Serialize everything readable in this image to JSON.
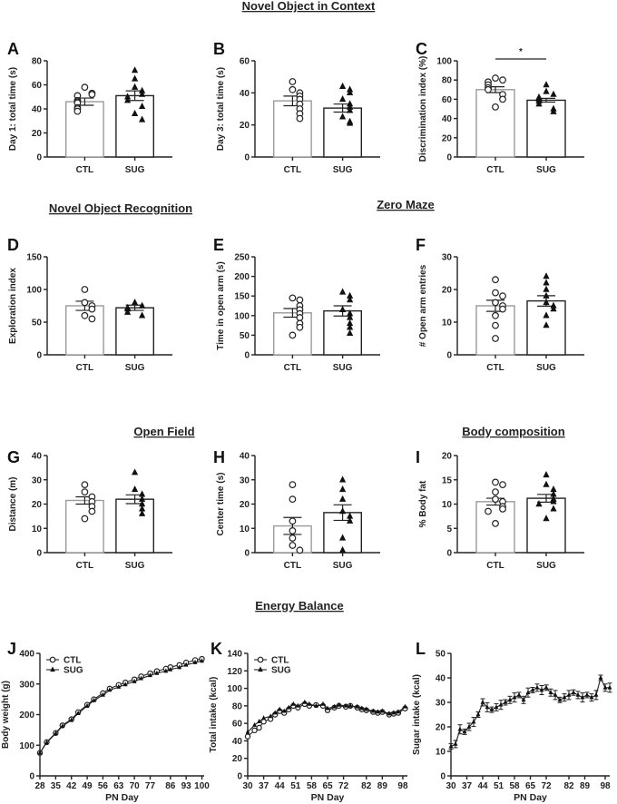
{
  "sections": {
    "noc": "Novel Object in Context",
    "nor": "Novel Object Recognition",
    "zm": "Zero Maze",
    "of": "Open Field",
    "bc": "Body composition",
    "eb": "Energy Balance"
  },
  "chart_data": [
    {
      "id": "A",
      "type": "bar",
      "categories": [
        "CTL",
        "SUG"
      ],
      "ylabel": "Day 1: total time (s)",
      "ylim": [
        0,
        80
      ],
      "yticks": [
        0,
        20,
        40,
        60,
        80
      ],
      "means": [
        46,
        51
      ],
      "sem": [
        3,
        4
      ],
      "points": [
        [
          58,
          53,
          52,
          51,
          47,
          46,
          45,
          41,
          40,
          38
        ],
        [
          72,
          65,
          58,
          55,
          52,
          50,
          47,
          42,
          36,
          31
        ]
      ]
    },
    {
      "id": "B",
      "type": "bar",
      "categories": [
        "CTL",
        "SUG"
      ],
      "ylabel": "Day 3: total time (s)",
      "ylim": [
        0,
        60
      ],
      "yticks": [
        0,
        20,
        40,
        60
      ],
      "means": [
        35,
        30.5
      ],
      "sem": [
        3,
        2.5
      ],
      "points": [
        [
          47,
          42,
          40,
          38,
          36,
          33,
          30,
          27,
          24
        ],
        [
          44,
          42,
          40,
          36,
          33,
          31,
          29,
          25,
          22,
          21
        ]
      ]
    },
    {
      "id": "C",
      "type": "bar",
      "categories": [
        "CTL",
        "SUG"
      ],
      "ylabel": "Discrimination index (%)",
      "ylim": [
        0,
        100
      ],
      "yticks": [
        0,
        20,
        40,
        60,
        80,
        100
      ],
      "means": [
        70,
        59
      ],
      "sem": [
        3,
        2
      ],
      "points": [
        [
          82,
          80,
          78,
          75,
          72,
          70,
          65,
          60,
          52
        ],
        [
          75,
          68,
          65,
          62,
          60,
          58,
          55,
          50,
          47
        ]
      ],
      "significance": "*"
    },
    {
      "id": "D",
      "type": "bar",
      "categories": [
        "CTL",
        "SUG"
      ],
      "ylabel": "Exploration index",
      "ylim": [
        0,
        150
      ],
      "yticks": [
        0,
        50,
        100,
        150
      ],
      "means": [
        75,
        72
      ],
      "sem": [
        7,
        4
      ],
      "points": [
        [
          100,
          80,
          75,
          70,
          60,
          55
        ],
        [
          80,
          75,
          72,
          70,
          65,
          60
        ]
      ]
    },
    {
      "id": "E",
      "type": "bar",
      "categories": [
        "CTL",
        "SUG"
      ],
      "ylabel": "Time in open arm (s)",
      "ylim": [
        0,
        250
      ],
      "yticks": [
        0,
        50,
        100,
        150,
        200,
        250
      ],
      "means": [
        107,
        112
      ],
      "sem": [
        11,
        13
      ],
      "points": [
        [
          145,
          140,
          125,
          115,
          105,
          95,
          80,
          70,
          50
        ],
        [
          160,
          150,
          140,
          115,
          105,
          95,
          80,
          70,
          55
        ]
      ]
    },
    {
      "id": "F",
      "type": "bar",
      "categories": [
        "CTL",
        "SUG"
      ],
      "ylabel": "# Open arm entries",
      "ylim": [
        0,
        30
      ],
      "yticks": [
        0,
        10,
        20,
        30
      ],
      "means": [
        15,
        16.5
      ],
      "sem": [
        1.7,
        1.6
      ],
      "points": [
        [
          23,
          19,
          18,
          16,
          15,
          14,
          12,
          9,
          5
        ],
        [
          24,
          22,
          20,
          18,
          16,
          15,
          14,
          12,
          9
        ]
      ]
    },
    {
      "id": "G",
      "type": "bar",
      "categories": [
        "CTL",
        "SUG"
      ],
      "ylabel": "Distance (m)",
      "ylim": [
        0,
        40
      ],
      "yticks": [
        0,
        10,
        20,
        30,
        40
      ],
      "means": [
        21.5,
        22
      ],
      "sem": [
        1.5,
        1.8
      ],
      "points": [
        [
          28,
          25,
          23,
          21,
          19,
          17,
          14
        ],
        [
          33,
          26,
          24,
          22,
          20,
          18,
          16
        ]
      ]
    },
    {
      "id": "H",
      "type": "bar",
      "categories": [
        "CTL",
        "SUG"
      ],
      "ylabel": "Center time (s)",
      "ylim": [
        0,
        40
      ],
      "yticks": [
        0,
        10,
        20,
        30,
        40
      ],
      "means": [
        11,
        16.5
      ],
      "sem": [
        3.5,
        3.2
      ],
      "points": [
        [
          28,
          22,
          13,
          9,
          6,
          3,
          1
        ],
        [
          30,
          26,
          22,
          17,
          15,
          13,
          6,
          1
        ]
      ]
    },
    {
      "id": "I",
      "type": "bar",
      "categories": [
        "CTL",
        "SUG"
      ],
      "ylabel": "% Body fat",
      "ylim": [
        0,
        20
      ],
      "yticks": [
        0,
        5,
        10,
        15,
        20
      ],
      "means": [
        10.5,
        11.2
      ],
      "sem": [
        0.7,
        0.8
      ],
      "points": [
        [
          14.5,
          14,
          12.5,
          11,
          10.5,
          9.5,
          9,
          8.5,
          6
        ],
        [
          16,
          14,
          13,
          12,
          11,
          10.5,
          10,
          9,
          7
        ]
      ]
    },
    {
      "id": "J",
      "type": "line",
      "ylabel": "Body weight (g)",
      "xlabel": "PN Day",
      "ylim": [
        0,
        400
      ],
      "yticks": [
        0,
        100,
        200,
        300,
        400
      ],
      "xlim": [
        28,
        101
      ],
      "xticks": [
        28,
        35,
        42,
        49,
        56,
        63,
        70,
        77,
        86,
        93,
        100
      ],
      "series": [
        {
          "name": "CTL",
          "marker": "open-circle",
          "x": [
            28,
            31,
            35,
            38,
            42,
            45,
            49,
            52,
            56,
            59,
            63,
            66,
            70,
            73,
            77,
            80,
            84,
            86,
            90,
            93,
            97,
            100
          ],
          "y": [
            75,
            110,
            140,
            165,
            185,
            208,
            232,
            250,
            270,
            285,
            297,
            305,
            315,
            325,
            335,
            342,
            350,
            355,
            362,
            370,
            378,
            382
          ]
        },
        {
          "name": "SUG",
          "marker": "filled-triangle",
          "x": [
            28,
            31,
            35,
            38,
            42,
            45,
            49,
            52,
            56,
            59,
            63,
            66,
            70,
            73,
            77,
            80,
            84,
            86,
            90,
            93,
            97,
            100
          ],
          "y": [
            75,
            108,
            138,
            162,
            182,
            204,
            228,
            246,
            264,
            280,
            290,
            298,
            308,
            318,
            328,
            335,
            342,
            347,
            354,
            362,
            370,
            375
          ]
        }
      ]
    },
    {
      "id": "K",
      "type": "line",
      "ylabel": "Total intake (kcal)",
      "xlabel": "PN Day",
      "ylim": [
        0,
        140
      ],
      "yticks": [
        0,
        20,
        40,
        60,
        80,
        100,
        120,
        140
      ],
      "xlim": [
        30,
        100
      ],
      "xticks": [
        30,
        37,
        44,
        51,
        58,
        65,
        72,
        82,
        89,
        98
      ],
      "series": [
        {
          "name": "CTL",
          "marker": "open-circle",
          "x": [
            30,
            33,
            35,
            37,
            40,
            42,
            44,
            46,
            48,
            50,
            52,
            55,
            57,
            60,
            63,
            65,
            68,
            70,
            73,
            75,
            78,
            80,
            82,
            85,
            87,
            89,
            92,
            94,
            96,
            99
          ],
          "y": [
            45,
            52,
            55,
            62,
            65,
            70,
            74,
            72,
            76,
            80,
            78,
            82,
            80,
            81,
            80,
            75,
            78,
            80,
            79,
            80,
            78,
            76,
            75,
            73,
            72,
            73,
            70,
            71,
            72,
            77
          ]
        },
        {
          "name": "SUG",
          "marker": "filled-triangle",
          "x": [
            30,
            33,
            35,
            37,
            40,
            42,
            44,
            46,
            48,
            50,
            52,
            55,
            57,
            60,
            63,
            65,
            68,
            70,
            73,
            75,
            78,
            80,
            82,
            85,
            87,
            89,
            92,
            94,
            96,
            99
          ],
          "y": [
            50,
            58,
            62,
            66,
            68,
            72,
            76,
            74,
            78,
            82,
            80,
            84,
            82,
            80,
            82,
            77,
            79,
            81,
            80,
            80,
            79,
            77,
            76,
            74,
            73,
            74,
            71,
            72,
            73,
            79
          ]
        }
      ]
    },
    {
      "id": "L",
      "type": "line",
      "ylabel": "Sugar intake (kcal)",
      "xlabel": "PN Day",
      "ylim": [
        0,
        50
      ],
      "yticks": [
        0,
        10,
        20,
        30,
        40,
        50
      ],
      "xlim": [
        30,
        100
      ],
      "xticks": [
        30,
        37,
        44,
        51,
        58,
        65,
        72,
        82,
        89,
        98
      ],
      "series": [
        {
          "name": "SUG",
          "marker": "filled-triangle",
          "x": [
            30,
            32,
            34,
            36,
            38,
            40,
            42,
            44,
            46,
            48,
            50,
            52,
            54,
            56,
            58,
            60,
            62,
            64,
            66,
            68,
            70,
            72,
            74,
            76,
            78,
            80,
            82,
            84,
            86,
            88,
            90,
            92,
            94,
            96,
            98,
            100
          ],
          "y": [
            12,
            13,
            19,
            18,
            20,
            22,
            25,
            30,
            28,
            27,
            28,
            29,
            30,
            31,
            32,
            33,
            31,
            34,
            35,
            36,
            35,
            36,
            34,
            33,
            31,
            32,
            33,
            34,
            33,
            32,
            33,
            32,
            33,
            40,
            36,
            36
          ]
        }
      ]
    }
  ]
}
